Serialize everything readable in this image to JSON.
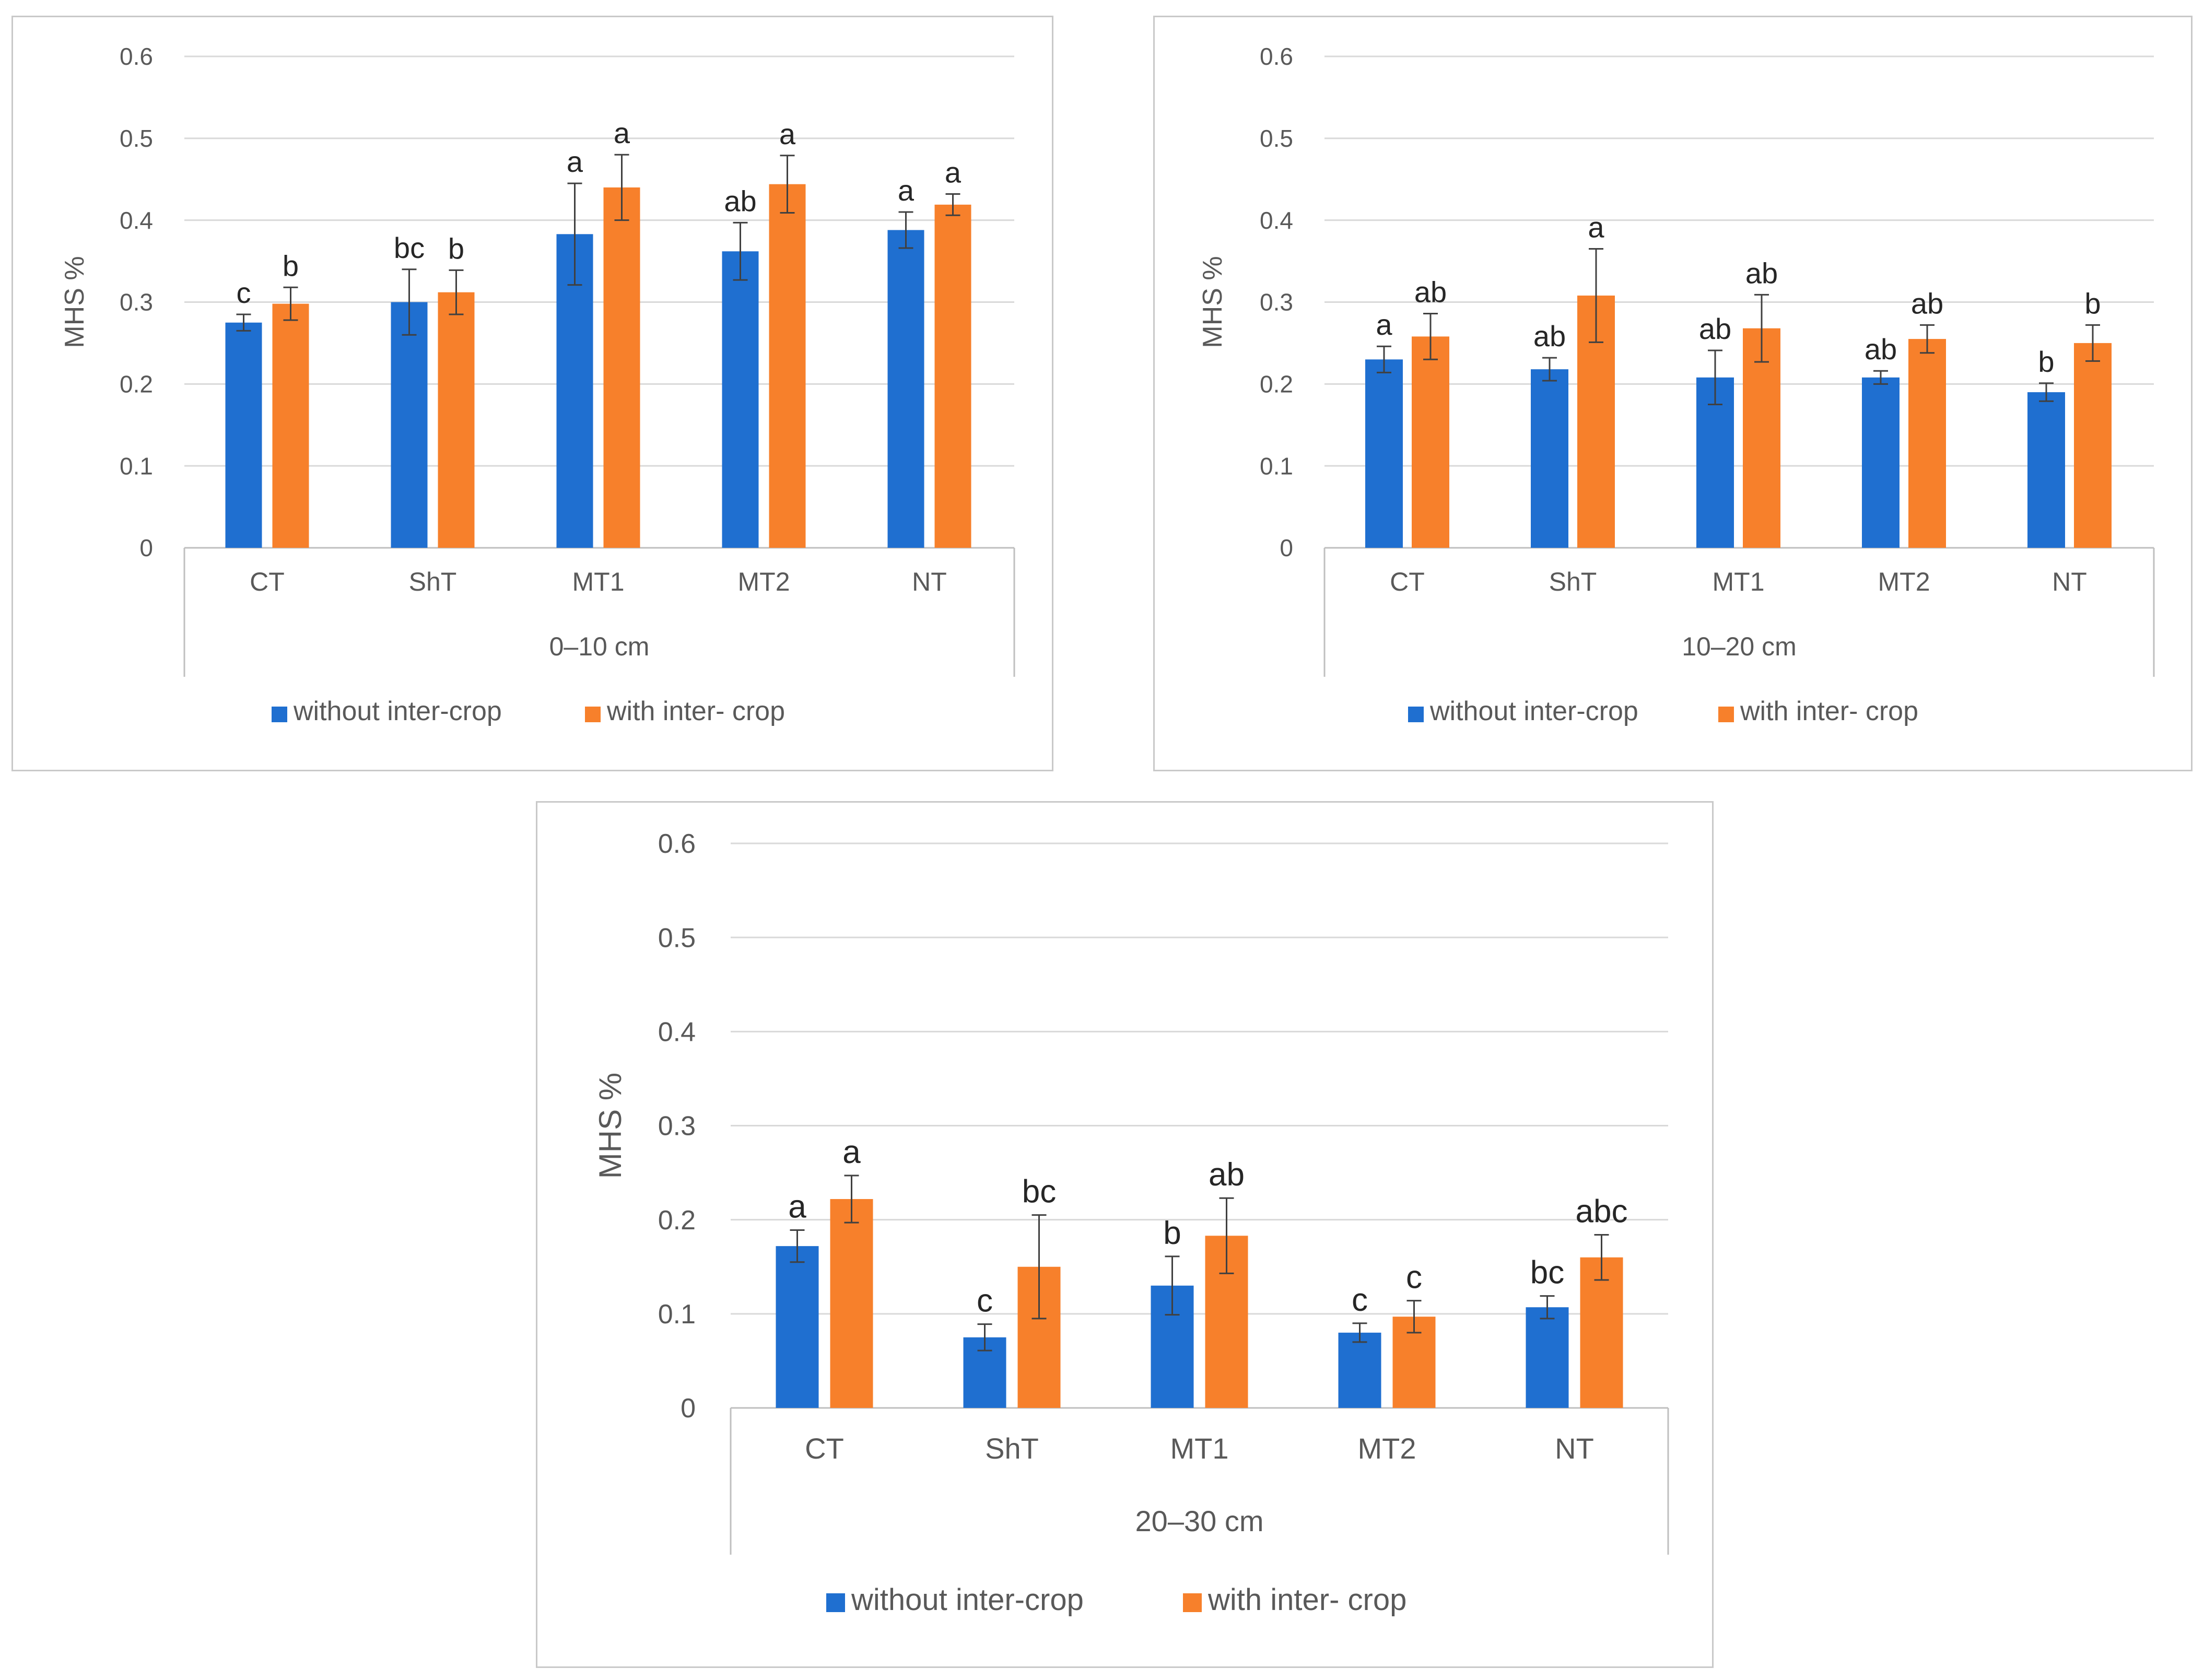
{
  "legend": {
    "without_label": "without inter-crop",
    "with_label": "with inter- crop"
  },
  "colors": {
    "without": "#1f6fd0",
    "with": "#f7802b",
    "grid": "#d9d9d9",
    "text": "#595959",
    "axis": "#bfbfbf",
    "error": "#404040"
  },
  "chart_data": [
    {
      "type": "bar",
      "title": "0–10 cm",
      "xlabel": "0–10 cm",
      "ylabel": "MHS %",
      "ylim": [
        0,
        0.6
      ],
      "yticks": [
        "0",
        "0.1",
        "0.2",
        "0.3",
        "0.4",
        "0.5",
        "0.6"
      ],
      "categories": [
        "CT",
        "ShT",
        "MT1",
        "MT2",
        "NT"
      ],
      "series": [
        {
          "name": "without inter-crop",
          "values": [
            0.275,
            0.3,
            0.383,
            0.362,
            0.388
          ],
          "errors": [
            0.01,
            0.04,
            0.062,
            0.035,
            0.022
          ],
          "letters": [
            "c",
            "bc",
            "a",
            "ab",
            "a"
          ]
        },
        {
          "name": "with inter- crop",
          "values": [
            0.298,
            0.312,
            0.44,
            0.444,
            0.419
          ],
          "errors": [
            0.02,
            0.027,
            0.04,
            0.035,
            0.013
          ],
          "letters": [
            "b",
            "b",
            "a",
            "a",
            "a"
          ]
        }
      ]
    },
    {
      "type": "bar",
      "title": "10–20 cm",
      "xlabel": "10–20 cm",
      "ylabel": "MHS %",
      "ylim": [
        0,
        0.6
      ],
      "yticks": [
        "0",
        "0.1",
        "0.2",
        "0.3",
        "0.4",
        "0.5",
        "0.6"
      ],
      "categories": [
        "CT",
        "ShT",
        "MT1",
        "MT2",
        "NT"
      ],
      "series": [
        {
          "name": "without inter-crop",
          "values": [
            0.23,
            0.218,
            0.208,
            0.208,
            0.19
          ],
          "errors": [
            0.016,
            0.014,
            0.033,
            0.008,
            0.011
          ],
          "letters": [
            "a",
            "ab",
            "ab",
            "ab",
            "b"
          ]
        },
        {
          "name": "with inter- crop",
          "values": [
            0.258,
            0.308,
            0.268,
            0.255,
            0.25
          ],
          "errors": [
            0.028,
            0.057,
            0.041,
            0.017,
            0.022
          ],
          "letters": [
            "ab",
            "a",
            "ab",
            "ab",
            "b"
          ]
        }
      ]
    },
    {
      "type": "bar",
      "title": "20–30 cm",
      "xlabel": "20–30 cm",
      "ylabel": "MHS %",
      "ylim": [
        0,
        0.6
      ],
      "yticks": [
        "0",
        "0.1",
        "0.2",
        "0.3",
        "0.4",
        "0.5",
        "0.6"
      ],
      "categories": [
        "CT",
        "ShT",
        "MT1",
        "MT2",
        "NT"
      ],
      "series": [
        {
          "name": "without inter-crop",
          "values": [
            0.172,
            0.075,
            0.13,
            0.08,
            0.107
          ],
          "errors": [
            0.017,
            0.014,
            0.031,
            0.01,
            0.012
          ],
          "letters": [
            "a",
            "c",
            "b",
            "c",
            "bc"
          ]
        },
        {
          "name": "with inter- crop",
          "values": [
            0.222,
            0.15,
            0.183,
            0.097,
            0.16
          ],
          "errors": [
            0.025,
            0.055,
            0.04,
            0.017,
            0.024
          ],
          "letters": [
            "a",
            "bc",
            "ab",
            "c",
            "abc"
          ]
        }
      ]
    }
  ]
}
